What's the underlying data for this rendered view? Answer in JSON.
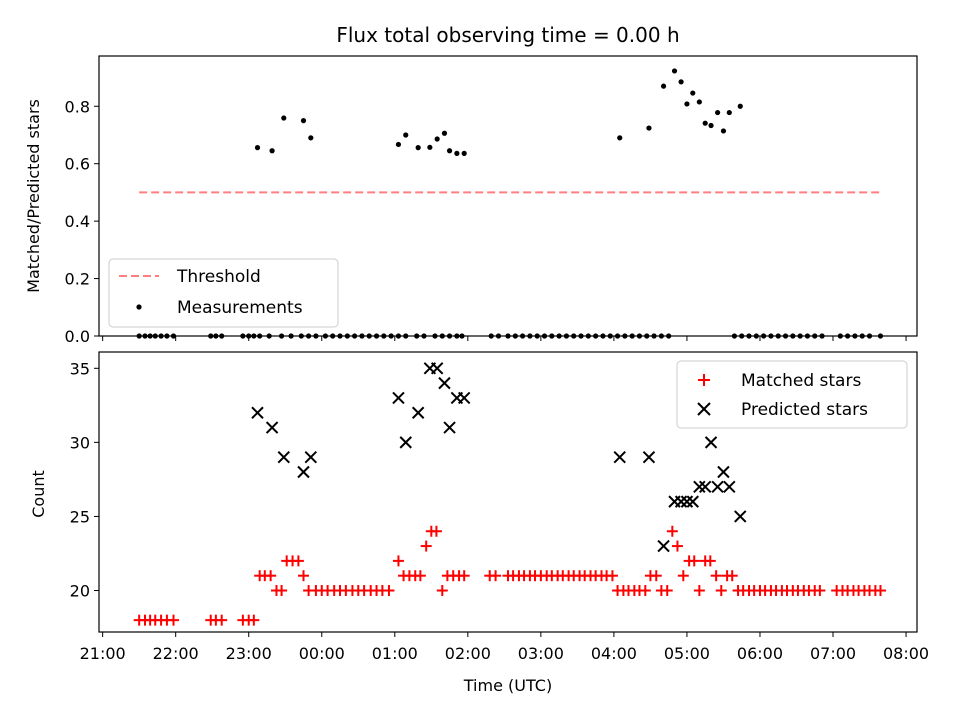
{
  "chart_data": [
    {
      "type": "scatter",
      "title": "Flux total observing time = 0.00 h",
      "xlabel": "",
      "ylabel": "Matched/Predicted stars",
      "xlim": [
        20.95,
        32.15
      ],
      "ylim": [
        0.0,
        0.975
      ],
      "yticks": [
        0.0,
        0.2,
        0.4,
        0.6,
        0.8
      ],
      "yticklabels": [
        "0.0",
        "0.2",
        "0.4",
        "0.6",
        "0.8"
      ],
      "legend": "lower-left",
      "threshold": {
        "name": "Threshold",
        "value": 0.5,
        "x": [
          21.5,
          31.65
        ],
        "color": "#ff7f7f"
      },
      "series": [
        {
          "name": "Measurements",
          "marker": "dot",
          "color": "#000000",
          "x": [
            21.5,
            21.58,
            21.65,
            21.72,
            21.8,
            21.88,
            21.97,
            22.48,
            22.55,
            22.63,
            22.92,
            23.0,
            23.07,
            23.15,
            23.28,
            23.45,
            23.58,
            23.72,
            23.82,
            23.92,
            24.05,
            24.15,
            24.25,
            24.35,
            24.45,
            24.55,
            24.65,
            24.75,
            24.85,
            24.95,
            25.05,
            25.15,
            25.3,
            25.4,
            25.55,
            25.65,
            25.75,
            25.85,
            25.92,
            26.32,
            26.42,
            26.55,
            26.65,
            26.75,
            26.85,
            26.95,
            27.05,
            27.15,
            27.25,
            27.35,
            27.45,
            27.55,
            27.65,
            27.75,
            27.85,
            27.95,
            28.05,
            28.15,
            28.25,
            28.35,
            28.45,
            28.55,
            28.65,
            28.75,
            29.65,
            29.75,
            29.85,
            29.95,
            30.05,
            30.15,
            30.25,
            30.35,
            30.45,
            30.55,
            30.65,
            30.75,
            30.85,
            31.1,
            31.2,
            31.3,
            31.4,
            31.5,
            31.65,
            23.12,
            23.32,
            23.48,
            23.75,
            23.85,
            25.05,
            25.15,
            25.32,
            25.48,
            25.58,
            25.68,
            25.75,
            25.85,
            25.95,
            28.08,
            28.48,
            28.68,
            28.83,
            28.92,
            29.0,
            29.08,
            29.17,
            29.25,
            29.33,
            29.42,
            29.5,
            29.58,
            29.73
          ],
          "y": [
            0,
            0,
            0,
            0,
            0,
            0,
            0,
            0,
            0,
            0,
            0,
            0,
            0,
            0,
            0,
            0,
            0,
            0,
            0,
            0,
            0,
            0,
            0,
            0,
            0,
            0,
            0,
            0,
            0,
            0,
            0,
            0,
            0,
            0,
            0,
            0,
            0,
            0,
            0,
            0,
            0,
            0,
            0,
            0,
            0,
            0,
            0,
            0,
            0,
            0,
            0,
            0,
            0,
            0,
            0,
            0,
            0,
            0,
            0,
            0,
            0,
            0,
            0,
            0,
            0,
            0,
            0,
            0,
            0,
            0,
            0,
            0,
            0,
            0,
            0,
            0,
            0,
            0,
            0,
            0,
            0,
            0,
            0,
            0.656,
            0.645,
            0.759,
            0.75,
            0.69,
            0.667,
            0.7,
            0.656,
            0.657,
            0.686,
            0.706,
            0.645,
            0.636,
            0.636,
            0.69,
            0.724,
            0.87,
            0.923,
            0.885,
            0.808,
            0.846,
            0.815,
            0.741,
            0.733,
            0.778,
            0.714,
            0.778,
            0.8
          ]
        }
      ]
    },
    {
      "type": "scatter",
      "title": "",
      "xlabel": "Time (UTC)",
      "ylabel": "Count",
      "xlim": [
        20.95,
        32.15
      ],
      "ylim": [
        17.2,
        36.1
      ],
      "yticks": [
        20,
        25,
        30,
        35
      ],
      "yticklabels": [
        "20",
        "25",
        "30",
        "35"
      ],
      "xticks": [
        21,
        22,
        23,
        24,
        25,
        26,
        27,
        28,
        29,
        30,
        31,
        32
      ],
      "xticklabels": [
        "21:00",
        "22:00",
        "23:00",
        "00:00",
        "01:00",
        "02:00",
        "03:00",
        "04:00",
        "05:00",
        "06:00",
        "07:00",
        "08:00"
      ],
      "legend": "upper-right",
      "series": [
        {
          "name": "Matched stars",
          "marker": "plus",
          "color": "#ff0000",
          "x": [
            21.5,
            21.58,
            21.65,
            21.72,
            21.8,
            21.88,
            21.97,
            22.48,
            22.55,
            22.63,
            22.92,
            23.0,
            23.07,
            23.15,
            23.22,
            23.3,
            23.38,
            23.45,
            23.52,
            23.6,
            23.68,
            23.75,
            23.82,
            23.92,
            24.0,
            24.08,
            24.17,
            24.25,
            24.33,
            24.42,
            24.5,
            24.58,
            24.67,
            24.75,
            24.83,
            24.92,
            25.05,
            25.12,
            25.2,
            25.28,
            25.35,
            25.43,
            25.5,
            25.57,
            25.65,
            25.72,
            25.8,
            25.88,
            25.95,
            26.3,
            26.38,
            26.55,
            26.62,
            26.7,
            26.77,
            26.85,
            26.92,
            27.0,
            27.08,
            27.15,
            27.23,
            27.3,
            27.38,
            27.45,
            27.53,
            27.6,
            27.68,
            27.75,
            27.83,
            27.9,
            27.98,
            28.05,
            28.13,
            28.2,
            28.28,
            28.35,
            28.43,
            28.5,
            28.58,
            28.65,
            28.73,
            28.8,
            28.87,
            28.95,
            29.03,
            29.1,
            29.17,
            29.25,
            29.32,
            29.4,
            29.47,
            29.55,
            29.62,
            29.7,
            29.77,
            29.85,
            29.92,
            30.0,
            30.07,
            30.15,
            30.22,
            30.3,
            30.37,
            30.45,
            30.52,
            30.6,
            30.67,
            30.75,
            30.82,
            31.05,
            31.13,
            31.2,
            31.28,
            31.35,
            31.43,
            31.5,
            31.58,
            31.65
          ],
          "y": [
            18,
            18,
            18,
            18,
            18,
            18,
            18,
            18,
            18,
            18,
            18,
            18,
            18,
            21,
            21,
            21,
            20,
            20,
            22,
            22,
            22,
            21,
            20,
            20,
            20,
            20,
            20,
            20,
            20,
            20,
            20,
            20,
            20,
            20,
            20,
            20,
            22,
            21,
            21,
            21,
            21,
            23,
            24,
            24,
            20,
            21,
            21,
            21,
            21,
            21,
            21,
            21,
            21,
            21,
            21,
            21,
            21,
            21,
            21,
            21,
            21,
            21,
            21,
            21,
            21,
            21,
            21,
            21,
            21,
            21,
            21,
            20,
            20,
            20,
            20,
            20,
            20,
            21,
            21,
            20,
            20,
            24,
            23,
            21,
            22,
            22,
            20,
            22,
            22,
            21,
            20,
            21,
            21,
            20,
            20,
            20,
            20,
            20,
            20,
            20,
            20,
            20,
            20,
            20,
            20,
            20,
            20,
            20,
            20,
            20,
            20,
            20,
            20,
            20,
            20,
            20,
            20,
            20
          ]
        },
        {
          "name": "Predicted stars",
          "marker": "x",
          "color": "#000000",
          "x": [
            23.12,
            23.32,
            23.48,
            23.75,
            23.85,
            25.05,
            25.15,
            25.32,
            25.48,
            25.58,
            25.68,
            25.75,
            25.85,
            25.95,
            28.08,
            28.48,
            28.68,
            28.83,
            28.92,
            29.0,
            29.08,
            29.17,
            29.25,
            29.33,
            29.42,
            29.5,
            29.58,
            29.73
          ],
          "y": [
            32,
            31,
            29,
            28,
            29,
            33,
            30,
            32,
            35,
            35,
            34,
            31,
            33,
            33,
            29,
            29,
            23,
            26,
            26,
            26,
            26,
            27,
            27,
            30,
            27,
            28,
            27,
            25
          ]
        }
      ]
    }
  ]
}
